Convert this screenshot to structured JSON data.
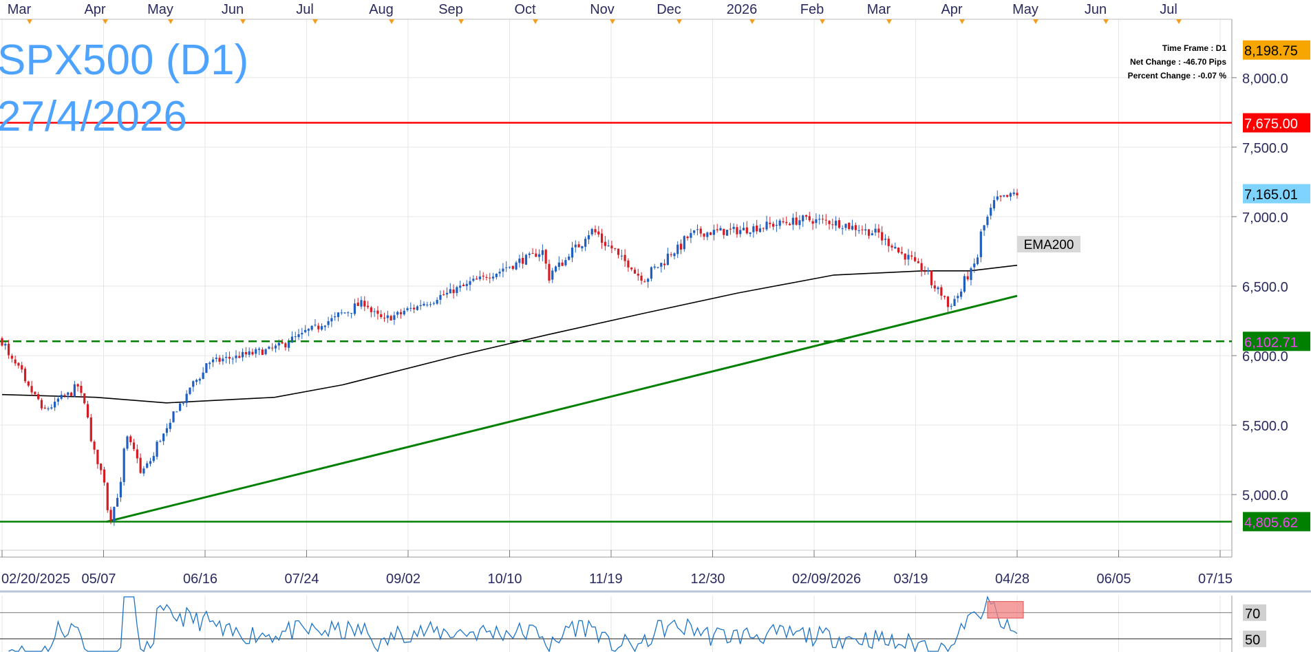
{
  "colors": {
    "up_candle": "#1f5fbf",
    "down_candle": "#d41c24",
    "grid": "#e6e6e6",
    "title_text": "#4da3ff",
    "axis_text": "#2a2a60",
    "resistance_line": "#ff0000",
    "support_line": "#008000",
    "ema_line": "#000000",
    "rsi_line": "#1a73c8",
    "rsi_overbought_box": "#f08080",
    "price_tag_current": "#7fd4ff",
    "price_tag_top": "#f7a600",
    "price_tag_resistance": "#ff0000",
    "price_tag_support": "#008000",
    "price_tag_support_text": "#ff40ff"
  },
  "chart_title": {
    "symbol": "SPX500 (D1)",
    "date": "27/4/2026"
  },
  "info_box": {
    "time_frame": "Time Frame : D1",
    "net_change": "Net Change : -46.70 Pips",
    "percent_change": "Percent Change : -0.07 %"
  },
  "chart_data": {
    "type": "candlestick",
    "month_labels": [
      "Mar",
      "Apr",
      "May",
      "Jun",
      "Jul",
      "Aug",
      "Sep",
      "Oct",
      "Nov",
      "Dec",
      "2026",
      "Feb",
      "Mar",
      "Apr",
      "May",
      "Jun",
      "Jul"
    ],
    "date_labels": [
      "02/20/2025",
      "05/07",
      "06/16",
      "07/24",
      "09/02",
      "10/10",
      "11/19",
      "12/30",
      "02/09/2026",
      "03/19",
      "04/28",
      "06/05",
      "07/15"
    ],
    "y_ticks": [
      "5,000.0",
      "5,500.0",
      "6,000.0",
      "6,500.0",
      "7,000.0",
      "7,500.0",
      "8,000.0"
    ],
    "y_tick_values": [
      5000,
      5500,
      6000,
      6500,
      7000,
      7500,
      8000
    ],
    "ylim": [
      4600,
      8420
    ],
    "anchors": [
      {
        "date": "2025-02-20",
        "close": 6100
      },
      {
        "date": "2025-03-10",
        "close": 5600
      },
      {
        "date": "2025-03-25",
        "close": 5780
      },
      {
        "date": "2025-04-08",
        "close": 4830
      },
      {
        "date": "2025-04-15",
        "close": 5400
      },
      {
        "date": "2025-04-21",
        "close": 5150
      },
      {
        "date": "2025-05-07",
        "close": 5650
      },
      {
        "date": "2025-05-19",
        "close": 5950
      },
      {
        "date": "2025-06-16",
        "close": 6050
      },
      {
        "date": "2025-07-24",
        "close": 6380
      },
      {
        "date": "2025-08-01",
        "close": 6250
      },
      {
        "date": "2025-09-02",
        "close": 6480
      },
      {
        "date": "2025-10-08",
        "close": 6750
      },
      {
        "date": "2025-10-10",
        "close": 6560
      },
      {
        "date": "2025-10-29",
        "close": 6900
      },
      {
        "date": "2025-11-20",
        "close": 6550
      },
      {
        "date": "2025-12-11",
        "close": 6880
      },
      {
        "date": "2025-12-30",
        "close": 6900
      },
      {
        "date": "2026-01-27",
        "close": 6980
      },
      {
        "date": "2026-02-09",
        "close": 6960
      },
      {
        "date": "2026-02-27",
        "close": 6880
      },
      {
        "date": "2026-03-19",
        "close": 6610
      },
      {
        "date": "2026-03-30",
        "close": 6350
      },
      {
        "date": "2026-04-08",
        "close": 6600
      },
      {
        "date": "2026-04-17",
        "close": 7100
      },
      {
        "date": "2026-04-27",
        "close": 7165
      }
    ],
    "ema200": {
      "label": "EMA200",
      "points": [
        {
          "date": "2025-02-20",
          "value": 5720
        },
        {
          "date": "2025-04-01",
          "value": 5700
        },
        {
          "date": "2025-05-01",
          "value": 5660
        },
        {
          "date": "2025-06-16",
          "value": 5700
        },
        {
          "date": "2025-07-15",
          "value": 5790
        },
        {
          "date": "2025-09-02",
          "value": 6000
        },
        {
          "date": "2025-10-10",
          "value": 6150
        },
        {
          "date": "2025-11-19",
          "value": 6300
        },
        {
          "date": "2025-12-30",
          "value": 6450
        },
        {
          "date": "2026-02-09",
          "value": 6580
        },
        {
          "date": "2026-03-19",
          "value": 6610
        },
        {
          "date": "2026-04-08",
          "value": 6610
        },
        {
          "date": "2026-04-28",
          "value": 6650
        }
      ]
    },
    "trendline": {
      "from": {
        "date": "2025-04-07",
        "value": 4805
      },
      "to": {
        "date": "2026-04-28",
        "value": 6430
      }
    },
    "horizontal_levels": [
      {
        "value": 7675.0,
        "label": "7,675.00",
        "style": "solid",
        "role": "resistance"
      },
      {
        "value": 6102.71,
        "label": "6,102.71",
        "style": "dashed",
        "role": "support"
      },
      {
        "value": 4805.62,
        "label": "4,805.62",
        "style": "solid",
        "role": "support"
      }
    ],
    "current_price_label": "7,165.01",
    "top_price_label": "8,198.75",
    "top_price_value": 8198.75,
    "current_price_value": 7165.01,
    "rsi": {
      "levels": [
        "70",
        "50"
      ],
      "level_values": [
        70,
        50
      ],
      "ylim": [
        40,
        83
      ]
    }
  }
}
